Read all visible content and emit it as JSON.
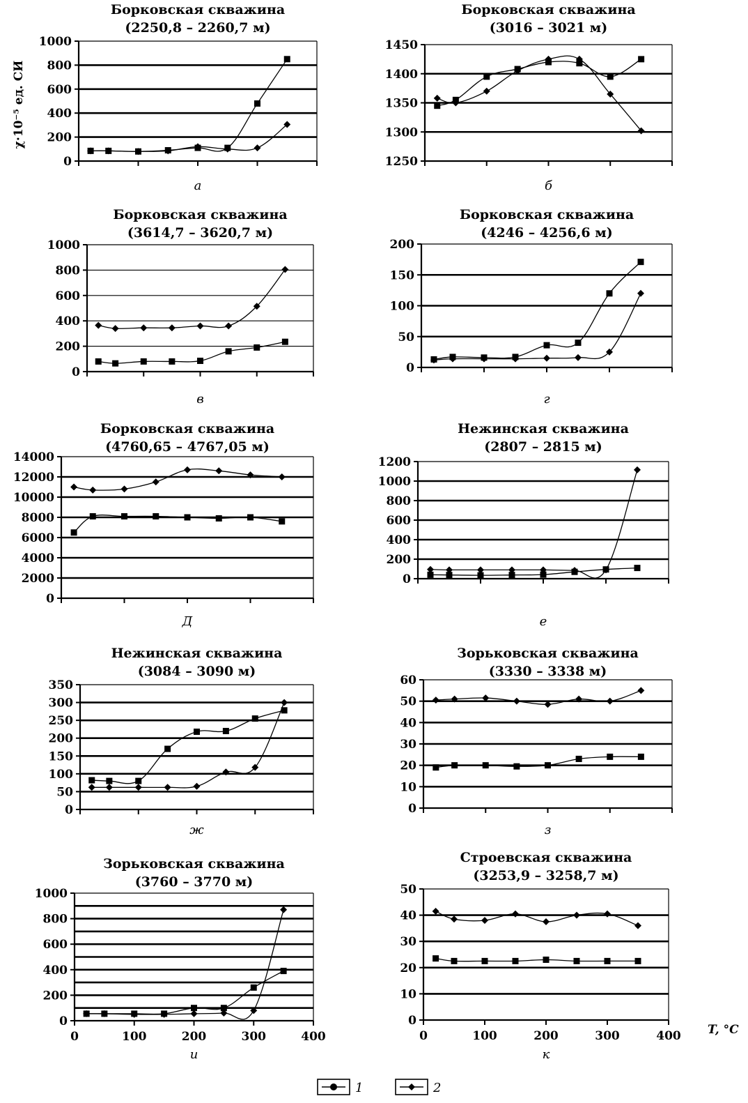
{
  "figure": {
    "ylabel": "χ·10⁻⁵ ед. СИ",
    "xlabel": "T, °C",
    "x_ticks": [
      "0",
      "100",
      "200",
      "300",
      "400"
    ],
    "legend": [
      {
        "label": "1",
        "marker": "square"
      },
      {
        "label": "2",
        "marker": "diamond"
      }
    ]
  },
  "chart_data": [
    {
      "type": "line",
      "letter": "а",
      "title": "Борковская скважина",
      "subtitle": "(2250,8 – 2260,7 м)",
      "x": [
        20,
        50,
        100,
        150,
        200,
        250,
        300,
        350
      ],
      "ylim": [
        0,
        1000
      ],
      "yticks": [
        0,
        200,
        400,
        600,
        800,
        1000
      ],
      "heavy_grid": [
        200,
        400,
        600,
        800
      ],
      "series": [
        {
          "name": "1",
          "values": [
            85,
            85,
            80,
            90,
            110,
            110,
            480,
            850
          ]
        },
        {
          "name": "2",
          "values": [
            85,
            85,
            80,
            85,
            120,
            100,
            110,
            305
          ]
        }
      ]
    },
    {
      "type": "line",
      "letter": "б",
      "title": "Борковская скважина",
      "subtitle": "(3016 – 3021 м)",
      "x": [
        20,
        50,
        100,
        150,
        200,
        250,
        300,
        350
      ],
      "ylim": [
        1250,
        1450
      ],
      "yticks": [
        1250,
        1300,
        1350,
        1400,
        1450
      ],
      "heavy_grid": [
        1300,
        1350,
        1400
      ],
      "series": [
        {
          "name": "1",
          "values": [
            1345,
            1355,
            1395,
            1408,
            1420,
            1418,
            1395,
            1425
          ]
        },
        {
          "name": "2",
          "values": [
            1358,
            1350,
            1370,
            1405,
            1425,
            1425,
            1365,
            1302
          ]
        }
      ]
    },
    {
      "type": "line",
      "letter": "в",
      "title": "Борковская скважина",
      "subtitle": "(3614,7 – 3620,7 м)",
      "x": [
        20,
        50,
        100,
        150,
        200,
        250,
        300,
        350
      ],
      "ylim": [
        0,
        1000
      ],
      "yticks": [
        0,
        200,
        400,
        600,
        800,
        1000
      ],
      "heavy_grid": [],
      "series": [
        {
          "name": "1",
          "values": [
            80,
            65,
            80,
            80,
            85,
            160,
            190,
            235
          ]
        },
        {
          "name": "2",
          "values": [
            365,
            340,
            345,
            345,
            360,
            360,
            515,
            805
          ]
        }
      ]
    },
    {
      "type": "line",
      "letter": "г",
      "title": "Борковская скважина",
      "subtitle": "(4246 – 4256,6 м)",
      "x": [
        20,
        50,
        100,
        150,
        200,
        250,
        300,
        350
      ],
      "ylim": [
        0,
        200
      ],
      "yticks": [
        0,
        50,
        100,
        150,
        200
      ],
      "heavy_grid": [
        50,
        100,
        150
      ],
      "series": [
        {
          "name": "1",
          "values": [
            13,
            17,
            16,
            17,
            36,
            40,
            120,
            171
          ]
        },
        {
          "name": "2",
          "values": [
            12,
            14,
            14,
            14,
            15,
            16,
            25,
            120
          ]
        }
      ]
    },
    {
      "type": "line",
      "letter": "Д",
      "title": "Борковская скважина",
      "subtitle": "(4760,65 – 4767,05 м)",
      "x": [
        20,
        50,
        100,
        150,
        200,
        250,
        300,
        350
      ],
      "ylim": [
        0,
        14000
      ],
      "yticks": [
        0,
        2000,
        4000,
        6000,
        8000,
        10000,
        12000,
        14000
      ],
      "heavy_grid": [
        2000,
        4000,
        6000,
        8000,
        10000,
        12000
      ],
      "series": [
        {
          "name": "1",
          "values": [
            6500,
            8100,
            8100,
            8100,
            8000,
            7900,
            8000,
            7600
          ]
        },
        {
          "name": "2",
          "values": [
            11000,
            10700,
            10800,
            11500,
            12700,
            12600,
            12200,
            12000
          ]
        }
      ]
    },
    {
      "type": "line",
      "letter": "е",
      "title": "Нежинская скважина",
      "subtitle": "(2807 – 2815 м)",
      "x": [
        20,
        50,
        100,
        150,
        200,
        250,
        300,
        350
      ],
      "ylim": [
        0,
        1200
      ],
      "yticks": [
        0,
        200,
        400,
        600,
        800,
        1000,
        1200
      ],
      "heavy_grid": [
        200,
        400,
        600,
        800,
        1000
      ],
      "series": [
        {
          "name": "1",
          "values": [
            40,
            38,
            35,
            38,
            42,
            70,
            95,
            110
          ]
        },
        {
          "name": "2",
          "values": [
            95,
            90,
            90,
            90,
            90,
            85,
            90,
            1115
          ]
        }
      ]
    },
    {
      "type": "line",
      "letter": "ж",
      "title": "Нежинская скважина",
      "subtitle": "(3084 – 3090 м)",
      "x": [
        20,
        50,
        100,
        150,
        200,
        250,
        300,
        350
      ],
      "ylim": [
        0,
        350
      ],
      "yticks": [
        0,
        50,
        100,
        150,
        200,
        250,
        300,
        350
      ],
      "heavy_grid": [
        50,
        100,
        150,
        200,
        250,
        300
      ],
      "series": [
        {
          "name": "1",
          "values": [
            82,
            80,
            80,
            170,
            218,
            220,
            255,
            278
          ]
        },
        {
          "name": "2",
          "values": [
            62,
            62,
            62,
            62,
            65,
            105,
            118,
            300
          ]
        }
      ]
    },
    {
      "type": "line",
      "letter": "з",
      "title": "Зорьковская скважина",
      "subtitle": "(3330 – 3338 м)",
      "x": [
        20,
        50,
        100,
        150,
        200,
        250,
        300,
        350
      ],
      "ylim": [
        0,
        60
      ],
      "yticks": [
        0,
        10,
        20,
        30,
        40,
        50,
        60
      ],
      "heavy_grid": [
        10,
        20,
        30,
        40,
        50
      ],
      "series": [
        {
          "name": "1",
          "values": [
            19,
            20,
            20,
            19.5,
            20,
            23,
            24,
            24
          ]
        },
        {
          "name": "2",
          "values": [
            50.5,
            51,
            51.5,
            50,
            48.5,
            51,
            50,
            55
          ]
        }
      ]
    },
    {
      "type": "line",
      "letter": "и",
      "title": "Зорьковская скважина",
      "subtitle": "(3760 – 3770 м)",
      "x": [
        20,
        50,
        100,
        150,
        200,
        250,
        300,
        350
      ],
      "ylim": [
        0,
        1000
      ],
      "yticks": [
        0,
        200,
        400,
        600,
        800,
        1000
      ],
      "heavy_grid": [
        100,
        200,
        300,
        400,
        500,
        600,
        700,
        800,
        900
      ],
      "series": [
        {
          "name": "1",
          "values": [
            55,
            55,
            55,
            55,
            100,
            100,
            260,
            390
          ]
        },
        {
          "name": "2",
          "values": [
            55,
            55,
            50,
            50,
            55,
            60,
            80,
            870
          ]
        }
      ]
    },
    {
      "type": "line",
      "letter": "к",
      "title": "Строевская скважина",
      "subtitle": "(3253,9 – 3258,7 м)",
      "x": [
        20,
        50,
        100,
        150,
        200,
        250,
        300,
        350
      ],
      "ylim": [
        0,
        50
      ],
      "yticks": [
        0,
        10,
        20,
        30,
        40,
        50
      ],
      "heavy_grid": [
        10,
        20,
        30,
        40
      ],
      "series": [
        {
          "name": "1",
          "values": [
            23.5,
            22.5,
            22.5,
            22.5,
            23,
            22.5,
            22.5,
            22.5
          ]
        },
        {
          "name": "2",
          "values": [
            41.5,
            38.5,
            38,
            40.5,
            37.5,
            40,
            40.5,
            36
          ]
        }
      ]
    }
  ]
}
